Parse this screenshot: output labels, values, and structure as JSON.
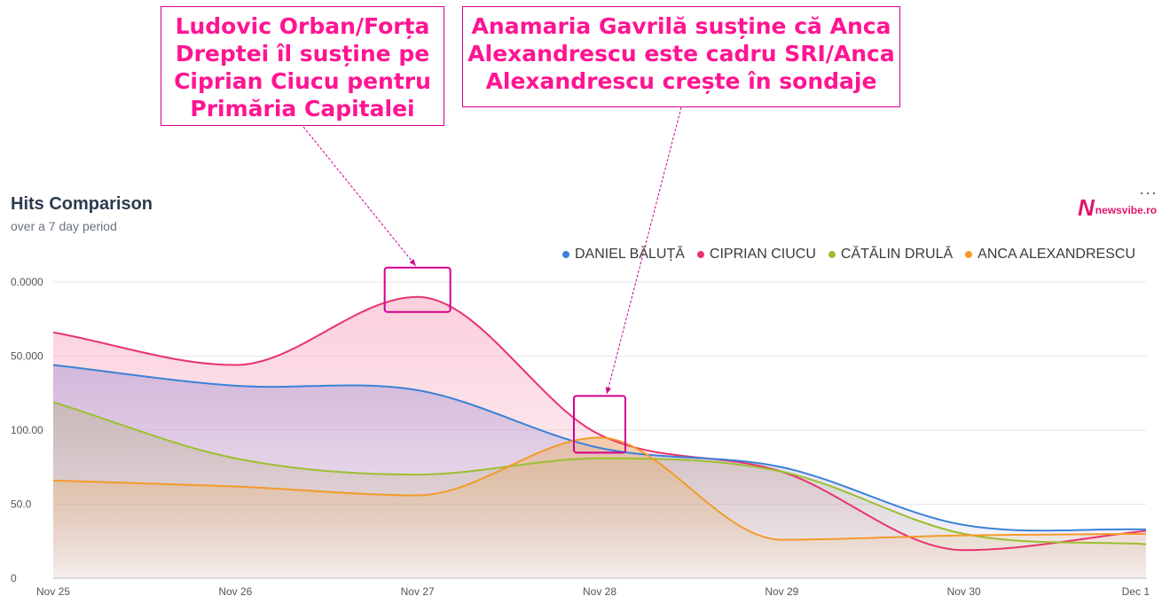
{
  "annotations": [
    "Ludovic Orban/Forța Dreptei îl susține pe Ciprian Ciucu pentru Primăria Capitalei",
    "Anamaria Gavrilă susține că Anca Alexandrescu este cadru SRI/Anca Alexandrescu crește în sondaje"
  ],
  "annotation_color": "#ff1493",
  "brand": {
    "mark": "N",
    "text": "newsvibe.ro"
  },
  "more_icon": "···",
  "chart_data": {
    "type": "area",
    "title": "Hits Comparison",
    "subtitle": "over a 7 day period",
    "categories": [
      "Nov 25",
      "Nov 26",
      "Nov 27",
      "Nov 28",
      "Nov 29",
      "Nov 30",
      "Dec 1"
    ],
    "y_tick_labels": [
      "0",
      "50.0",
      "100.00",
      "50.000",
      "0.0000"
    ],
    "ylim": [
      0,
      200
    ],
    "grid": true,
    "legend_position": "top-right",
    "series": [
      {
        "name": "DANIEL BĂLUȚĂ",
        "color": "#3b82d6",
        "values": [
          144,
          130,
          127,
          88,
          75,
          36,
          33
        ]
      },
      {
        "name": "CIPRIAN CIUCU",
        "color": "#e8336f",
        "values": [
          166,
          144,
          190,
          97,
          72,
          19,
          32
        ]
      },
      {
        "name": "CĂTĂLIN DRULĂ",
        "color": "#9cbf2f",
        "values": [
          119,
          81,
          70,
          81,
          72,
          30,
          23
        ]
      },
      {
        "name": "ANCA ALEXANDRESCU",
        "color": "#f39a2a",
        "values": [
          66,
          62,
          56,
          95,
          26,
          29,
          30
        ]
      }
    ]
  }
}
